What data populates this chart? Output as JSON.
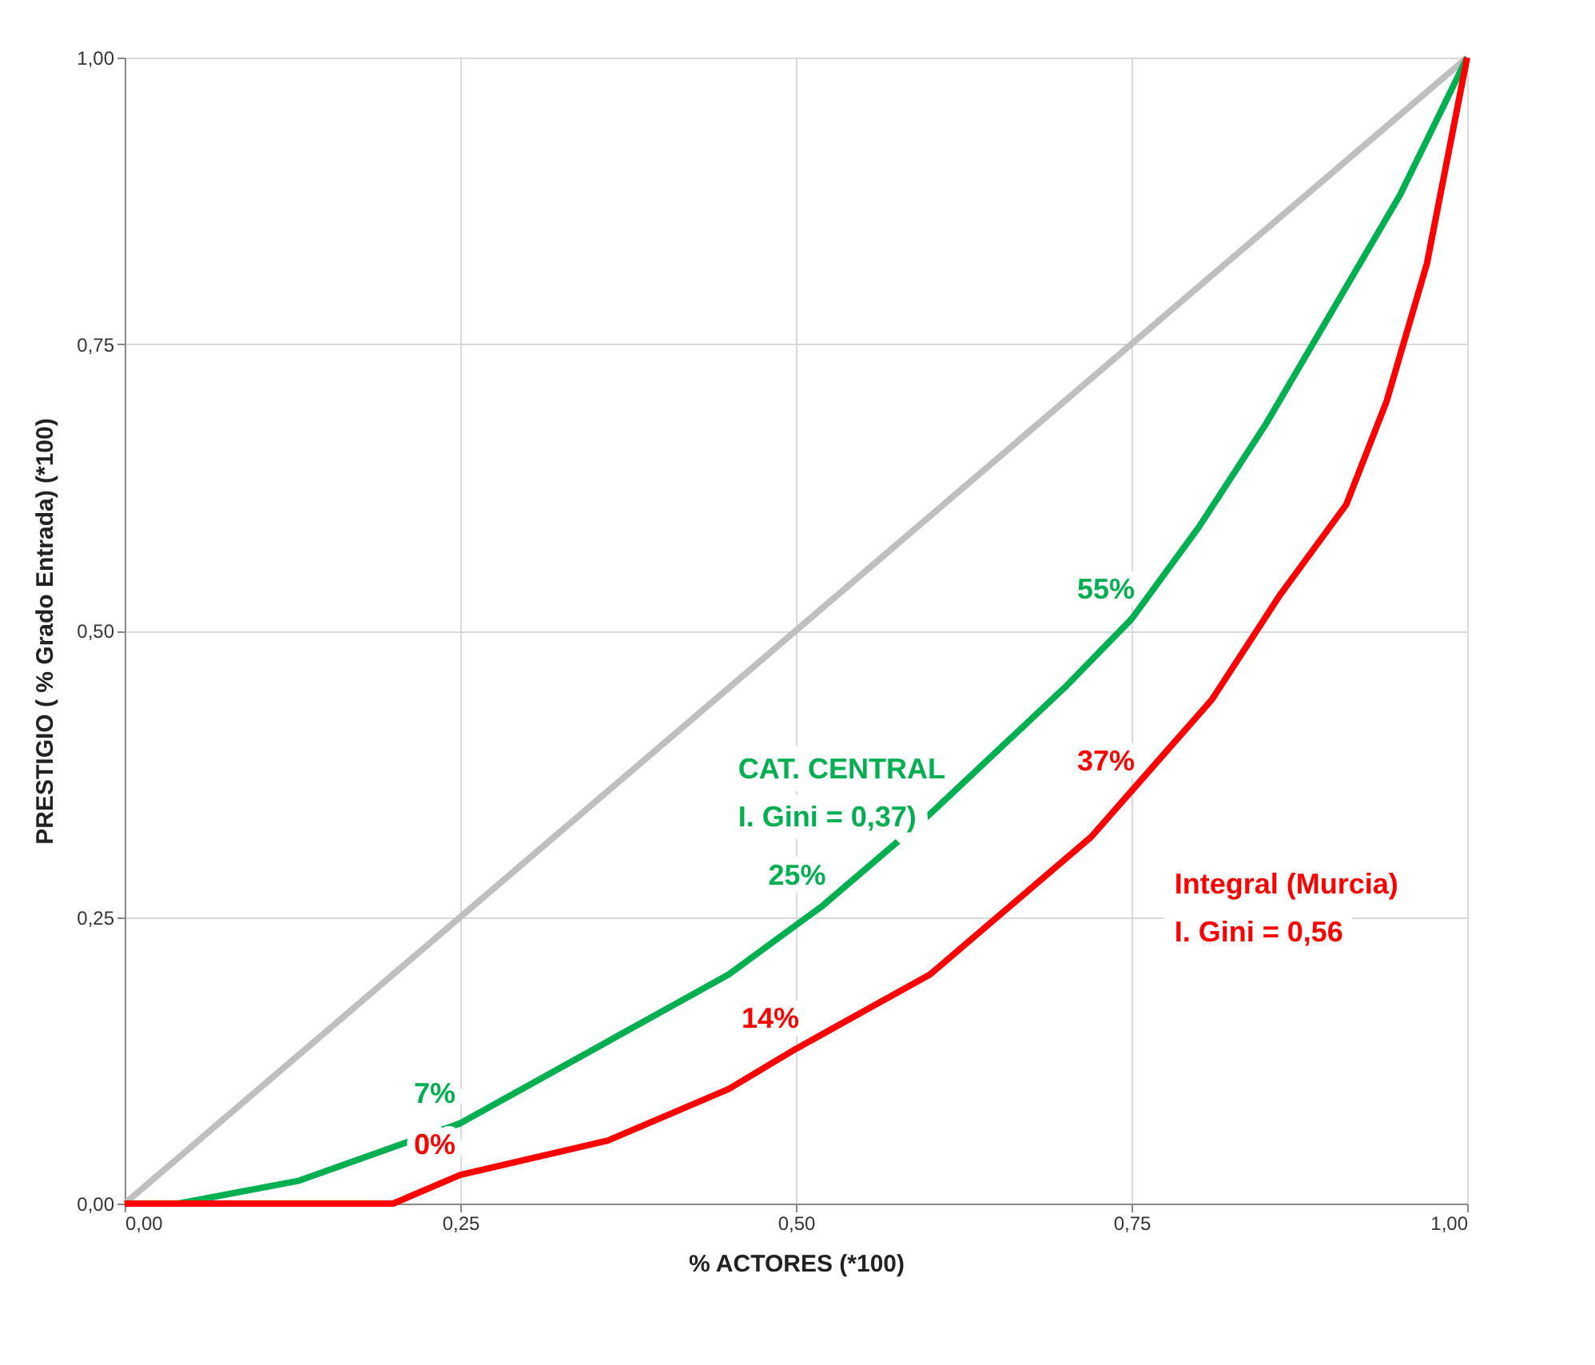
{
  "chart_data": {
    "type": "line",
    "xlabel": "% ACTORES (*100)",
    "ylabel": "PRESTIGIO ( % Grado Entrada) (*100)",
    "xlim": [
      0,
      1
    ],
    "ylim": [
      0,
      1
    ],
    "xticks": [
      {
        "value": 0,
        "label": "0,00"
      },
      {
        "value": 0.25,
        "label": "0,25"
      },
      {
        "value": 0.5,
        "label": "0,50"
      },
      {
        "value": 0.75,
        "label": "0,75"
      },
      {
        "value": 1,
        "label": "1,00"
      }
    ],
    "yticks": [
      {
        "value": 0,
        "label": "0,00"
      },
      {
        "value": 0.25,
        "label": "0,25"
      },
      {
        "value": 0.5,
        "label": "0,50"
      },
      {
        "value": 0.75,
        "label": "0,75"
      },
      {
        "value": 1,
        "label": "1,00"
      }
    ],
    "grid": true,
    "legend": false,
    "marker": "none",
    "line_style": "solid",
    "series": [
      {
        "color": "#bfbfbf",
        "x": [
          0,
          1
        ],
        "values": [
          0,
          1
        ]
      },
      {
        "name": "CAT. CENTRAL",
        "color": "#00b050",
        "x": [
          0,
          0.04,
          0.13,
          0.25,
          0.45,
          0.52,
          0.6,
          0.7,
          0.75,
          0.8,
          0.85,
          0.9,
          0.95,
          1
        ],
        "values": [
          0,
          0,
          0.02,
          0.07,
          0.2,
          0.26,
          0.34,
          0.45,
          0.51,
          0.59,
          0.68,
          0.78,
          0.88,
          1
        ]
      },
      {
        "name": "Integral (Murcia)",
        "color": "#ff0000",
        "x": [
          0,
          0.2,
          0.25,
          0.36,
          0.45,
          0.5,
          0.6,
          0.72,
          0.75,
          0.81,
          0.86,
          0.91,
          0.94,
          0.97,
          1
        ],
        "values": [
          0,
          0,
          0.025,
          0.055,
          0.1,
          0.135,
          0.2,
          0.32,
          0.36,
          0.44,
          0.53,
          0.61,
          0.7,
          0.82,
          1
        ]
      }
    ],
    "annotations": [
      "I. Gini =  0,37)",
      "I. Gini =  0,56",
      {
        "text": "7%",
        "x": 0.25,
        "y": 0.07
      },
      {
        "text": "0%",
        "x": 0.25,
        "y": 0.025
      },
      {
        "text": "14%",
        "x": 0.5,
        "y": 0.135
      },
      {
        "text": "25%",
        "x": 0.52,
        "y": 0.26
      },
      {
        "text": "37%",
        "x": 0.75,
        "y": 0.36
      },
      {
        "text": "55%",
        "x": 0.75,
        "y": 0.51
      }
    ]
  }
}
